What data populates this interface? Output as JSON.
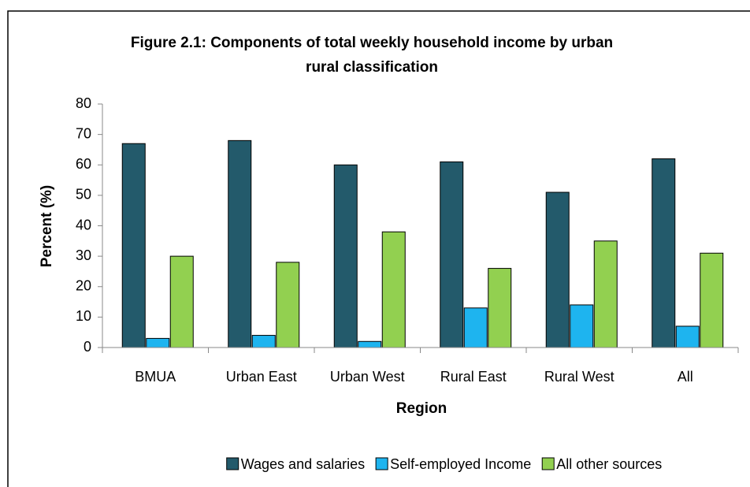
{
  "chart_data": {
    "type": "bar",
    "title": [
      "Figure 2.1: Components of total weekly household income by urban",
      "rural classification"
    ],
    "x_label": "Region",
    "y_label": "Percent (%)",
    "categories": [
      "BMUA",
      "Urban East",
      "Urban West",
      "Rural East",
      "Rural West",
      "All"
    ],
    "series": [
      {
        "name": "Wages and salaries",
        "color": "#235a6b",
        "values": [
          67,
          68,
          60,
          61,
          51,
          62
        ]
      },
      {
        "name": "Self-employed Income",
        "color": "#1eb4ef",
        "values": [
          3,
          4,
          2,
          13,
          14,
          7
        ]
      },
      {
        "name": "All other sources",
        "color": "#92d050",
        "values": [
          30,
          28,
          38,
          26,
          35,
          31
        ]
      }
    ],
    "ylim": [
      0,
      80
    ],
    "yticks": [
      0,
      10,
      20,
      30,
      40,
      50,
      60,
      70,
      80
    ],
    "grid": false,
    "legend": "bottom"
  }
}
